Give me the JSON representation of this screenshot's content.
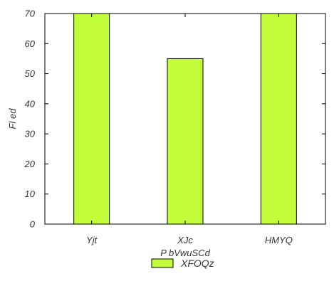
{
  "chart_data": {
    "type": "bar",
    "categories": [
      "Yjt",
      "XJc",
      "HMYQ"
    ],
    "series": [
      {
        "name": "XFOQz",
        "values": [
          70,
          55,
          70
        ]
      }
    ],
    "xlabel": "P bVwuSCd",
    "ylabel": "Fl  ed",
    "ylim": [
      0,
      70
    ],
    "yticks": [
      0,
      10,
      20,
      30,
      40,
      50,
      60,
      70
    ],
    "grid": false,
    "legend_position": "bottom-center",
    "bar_color": "#c2ff3a",
    "edge_color": "#000000"
  }
}
